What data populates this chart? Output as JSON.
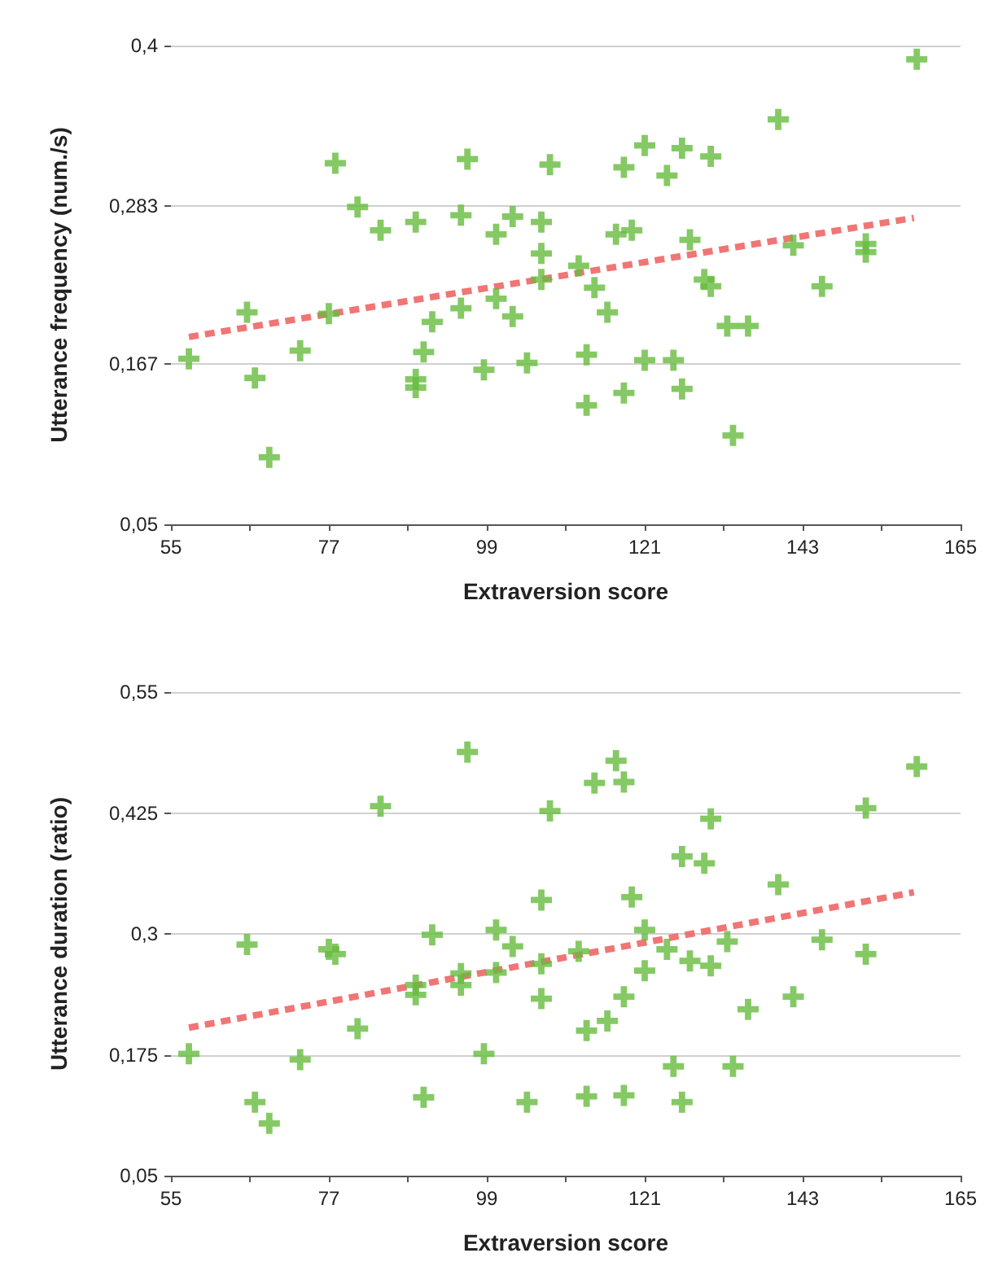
{
  "chart_data": [
    {
      "type": "scatter",
      "xlabel": "Extraversion score",
      "ylabel": "Utterance frequency (num./s)",
      "xlim": [
        55,
        165
      ],
      "xticks": [
        55,
        {
          "value": 66,
          "label": null
        },
        77,
        {
          "value": 88,
          "label": null
        },
        99,
        {
          "value": 110,
          "label": null
        },
        121,
        {
          "value": 132,
          "label": null
        },
        143,
        {
          "value": 154,
          "label": null
        },
        165
      ],
      "ylim": [
        0.05,
        0.4
      ],
      "yticks": [
        {
          "value": 0.05,
          "label": "0,05"
        },
        {
          "value": 0.167,
          "label": "0,167"
        },
        {
          "value": 0.283,
          "label": "0,283"
        },
        {
          "value": 0.4,
          "label": "0,4"
        }
      ],
      "grid": "y",
      "series": [
        {
          "type": "scatter",
          "color": "#66bb3f",
          "marker": "cross",
          "x": [
            57.5,
            65.6,
            66.7,
            68.7,
            73.0,
            77.0,
            77.9,
            81.0,
            84.2,
            89.1,
            89.1,
            89.1,
            90.2,
            91.4,
            95.4,
            95.4,
            96.3,
            98.6,
            100.3,
            100.3,
            102.6,
            102.6,
            104.6,
            106.6,
            106.6,
            106.6,
            107.8,
            111.8,
            112.9,
            112.9,
            114.0,
            115.8,
            117.0,
            118.1,
            118.1,
            119.2,
            121.0,
            121.0,
            124.1,
            125.0,
            126.2,
            126.2,
            127.3,
            129.3,
            130.2,
            130.2,
            132.5,
            133.3,
            135.4,
            139.6,
            141.7,
            145.7,
            151.8,
            151.8,
            158.9
          ],
          "values": [
            0.171,
            0.205,
            0.157,
            0.099,
            0.177,
            0.204,
            0.314,
            0.282,
            0.265,
            0.271,
            0.156,
            0.15,
            0.176,
            0.198,
            0.276,
            0.208,
            0.317,
            0.163,
            0.262,
            0.215,
            0.275,
            0.202,
            0.168,
            0.271,
            0.248,
            0.229,
            0.313,
            0.239,
            0.174,
            0.137,
            0.223,
            0.205,
            0.262,
            0.311,
            0.146,
            0.265,
            0.327,
            0.17,
            0.305,
            0.17,
            0.325,
            0.149,
            0.258,
            0.229,
            0.319,
            0.224,
            0.195,
            0.115,
            0.195,
            0.346,
            0.254,
            0.224,
            0.255,
            0.249,
            0.39
          ]
        },
        {
          "type": "line",
          "color": "#ee6666",
          "line_style": "dashed",
          "x": [
            57.5,
            158.5
          ],
          "values": [
            0.187,
            0.274
          ]
        }
      ]
    },
    {
      "type": "scatter",
      "xlabel": "Extraversion score",
      "ylabel": "Utterance duration (ratio)",
      "xlim": [
        55,
        165
      ],
      "xticks": [
        55,
        {
          "value": 66,
          "label": null
        },
        77,
        {
          "value": 88,
          "label": null
        },
        99,
        {
          "value": 110,
          "label": null
        },
        121,
        {
          "value": 132,
          "label": null
        },
        143,
        {
          "value": 154,
          "label": null
        },
        165
      ],
      "ylim": [
        0.05,
        0.55
      ],
      "yticks": [
        {
          "value": 0.05,
          "label": "0,05"
        },
        {
          "value": 0.175,
          "label": "0,175"
        },
        {
          "value": 0.3,
          "label": "0,3"
        },
        {
          "value": 0.425,
          "label": "0,425"
        },
        {
          "value": 0.55,
          "label": "0,55"
        }
      ],
      "grid": "y",
      "series": [
        {
          "type": "scatter",
          "color": "#66bb3f",
          "marker": "cross",
          "x": [
            57.5,
            65.6,
            66.7,
            68.7,
            73.0,
            77.0,
            77.9,
            81.0,
            84.2,
            89.1,
            89.1,
            90.2,
            91.4,
            95.4,
            95.4,
            96.3,
            98.6,
            100.3,
            100.3,
            102.6,
            104.6,
            106.6,
            106.6,
            106.6,
            107.8,
            111.8,
            112.9,
            112.9,
            114.0,
            115.8,
            117.0,
            118.1,
            118.1,
            118.1,
            119.2,
            121.0,
            121.0,
            124.1,
            125.0,
            126.2,
            126.2,
            127.3,
            129.3,
            130.2,
            130.2,
            132.5,
            133.3,
            135.4,
            139.6,
            141.7,
            145.7,
            151.8,
            151.8,
            158.9
          ],
          "values": [
            0.176,
            0.289,
            0.126,
            0.104,
            0.17,
            0.284,
            0.279,
            0.202,
            0.432,
            0.247,
            0.237,
            0.131,
            0.299,
            0.259,
            0.247,
            0.488,
            0.176,
            0.304,
            0.26,
            0.287,
            0.126,
            0.335,
            0.269,
            0.233,
            0.427,
            0.282,
            0.2,
            0.132,
            0.456,
            0.21,
            0.479,
            0.457,
            0.235,
            0.133,
            0.338,
            0.304,
            0.262,
            0.284,
            0.163,
            0.38,
            0.126,
            0.272,
            0.373,
            0.419,
            0.267,
            0.292,
            0.163,
            0.222,
            0.351,
            0.235,
            0.294,
            0.43,
            0.279,
            0.473
          ]
        },
        {
          "type": "line",
          "color": "#ee6666",
          "line_style": "dashed",
          "x": [
            57.5,
            158.5
          ],
          "values": [
            0.203,
            0.343
          ]
        }
      ]
    }
  ]
}
